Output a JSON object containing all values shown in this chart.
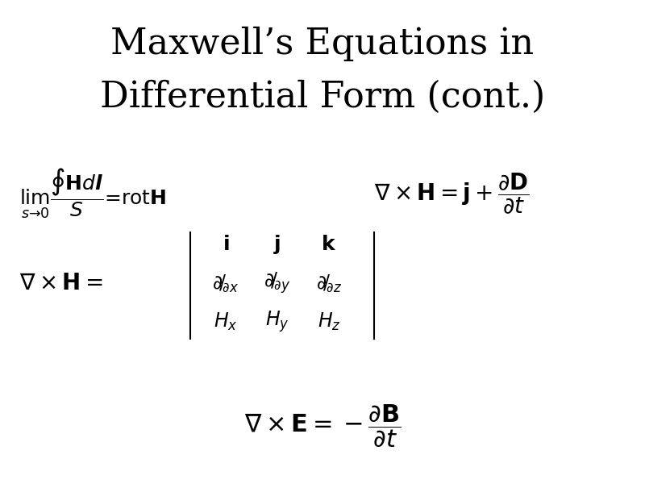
{
  "title_line1": "Maxwell’s Equations in",
  "title_line2": "Differential Form (cont.)",
  "title_fontsize": 32,
  "bg_color": "#ffffff",
  "text_color": "#000000",
  "fig_width": 8.0,
  "fig_height": 6.0,
  "eq1_limit": "\\lim_{s\\to 0}\\dfrac{\\oint \\mathbf{H}d\\boldsymbol{l}}{S} = \\mathrm{rot}\\mathbf{H}",
  "eq2_curl_H": "\\nabla\\times\\mathbf{H} = \\mathbf{j}+\\dfrac{\\partial\\mathbf{D}}{\\partial t}",
  "eq3_curl_E": "\\nabla\\times\\mathbf{E} = -\\dfrac{\\partial\\mathbf{B}}{\\partial t}"
}
